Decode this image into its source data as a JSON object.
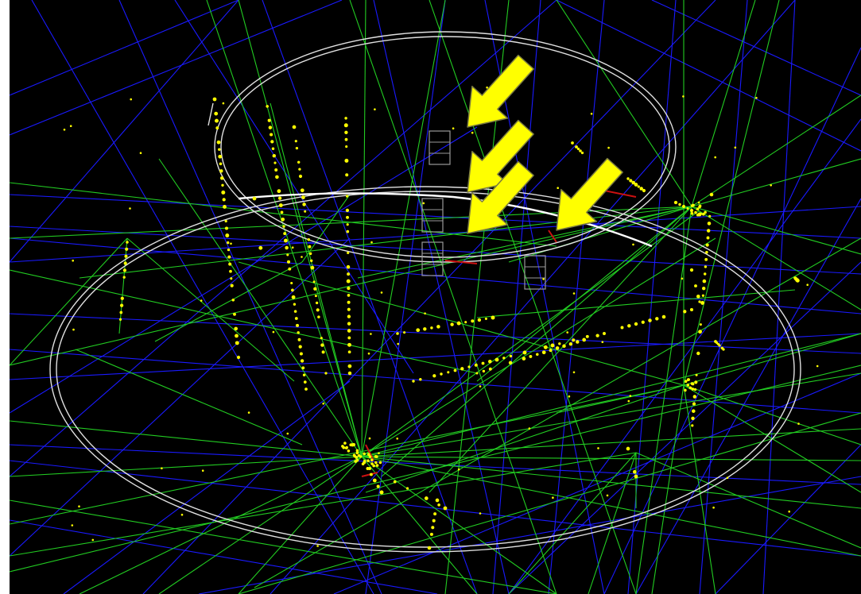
{
  "image": {
    "description_type": "event-display",
    "colors": {
      "background": "#000000",
      "page_border": "#ffffff",
      "blue_lines": "#1a1aff",
      "green_lines": "#22cc22",
      "detector_outline": "#e0e0e0",
      "hits": "#ffff00",
      "red_segments": "#cc1111",
      "arrow_fill": "#ffff00",
      "arrow_stroke": "#7a7a40",
      "module_boxes": "#9a9a9a"
    },
    "arrow_count": 4,
    "module_box_count": 4
  }
}
